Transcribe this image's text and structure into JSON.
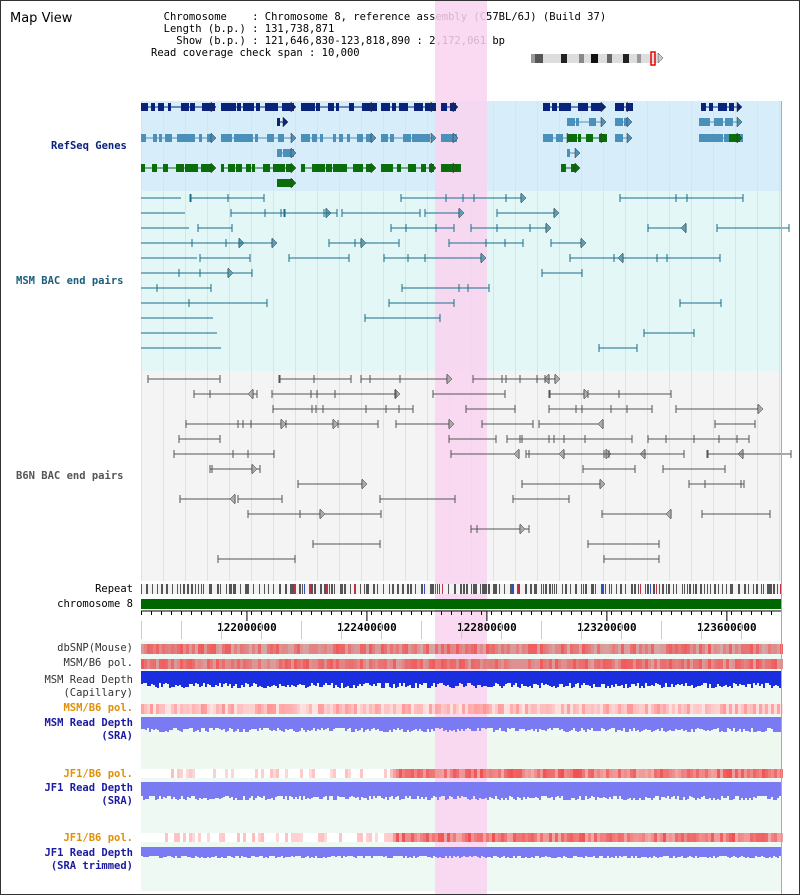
{
  "page": {
    "title": "Map View",
    "info_lines": [
      "  Chromosome    : Chromosome 8, reference assembly (C57BL/6J) (Build 37)",
      "  Length (b.p.) : 131,738,871",
      "    Show (b.p.) : 121,646,830-123,818,890 : 2,172,061 bp",
      "Read coverage check span : 10,000"
    ]
  },
  "colors": {
    "refseq": "#0a237a",
    "refseq_mid": "#4a90b8",
    "refseq_green": "#0a6e0a",
    "msm_bac": "#1a6e8a",
    "b6n_bac": "#555555",
    "highlight": "#f9d4f0",
    "refseq_bg": "#d7eefa",
    "msm_bg": "#e4f7f7",
    "b6n_bg": "#f4f4f4",
    "chromosome_bar": "#006600"
  },
  "tracks": {
    "refseq": "RefSeq Genes",
    "msm_bac": "MSM BAC end pairs",
    "b6n_bac": "B6N BAC end pairs",
    "repeat": "Repeat",
    "chromosome": "chromosome 8",
    "dbsnp": "dbSNP(Mouse)",
    "msm_b6_pol": "MSM/B6 pol.",
    "msm_depth_cap_1": "MSM Read Depth",
    "msm_depth_cap_2": "(Capillary)",
    "msm_b6_pol_2": "MSM/B6 pol.",
    "msm_depth_sra_1": "MSM Read Depth",
    "msm_depth_sra_2": "(SRA)",
    "jf1_b6_pol": "JF1/B6 pol.",
    "jf1_depth_sra_1": "JF1 Read Depth",
    "jf1_depth_sra_2": "(SRA)",
    "jf1_b6_pol_2": "JF1/B6 pol.",
    "jf1_depth_trim_1": "JF1 Read Depth",
    "jf1_depth_trim_2": "(SRA trimmed)"
  },
  "ruler": {
    "ticks": [
      {
        "label": "122000000",
        "value": 122000000
      },
      {
        "label": "122400000",
        "value": 122400000
      },
      {
        "label": "122800000",
        "value": 122800000
      },
      {
        "label": "123200000",
        "value": 123200000
      },
      {
        "label": "123600000",
        "value": 123600000
      }
    ]
  }
}
